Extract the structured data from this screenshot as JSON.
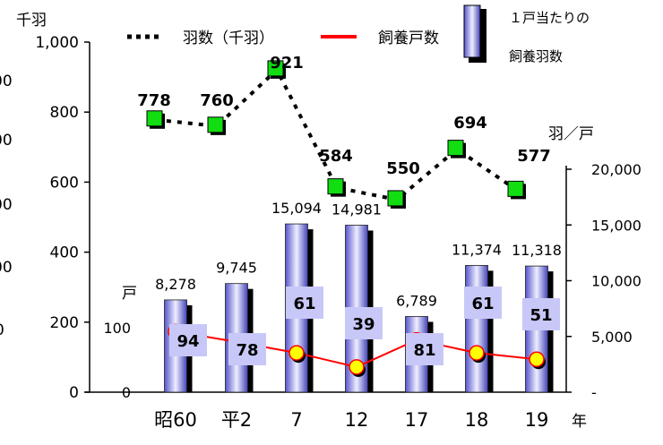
{
  "chart_data": {
    "type": "bar",
    "categories": [
      "昭60",
      "平2",
      "7",
      "12",
      "17",
      "18",
      "19"
    ],
    "x_suffix": "年",
    "left_axis": {
      "unit_top": "千羽",
      "unit_mid": "戸",
      "ticks": [
        "0",
        "200",
        "400",
        "600",
        "800",
        "1,000"
      ],
      "household_ticks": [
        "0",
        "100"
      ],
      "range": [
        0,
        1000
      ]
    },
    "right_axis": {
      "unit": "羽／戸",
      "ticks": [
        "-",
        "5,000",
        "10,000",
        "15,000",
        "20,000"
      ],
      "range": [
        0,
        20000
      ]
    },
    "clipped_left_labels": [
      "00",
      "00",
      "00",
      "00",
      "0"
    ],
    "legend": {
      "birds": "羽数（千羽）",
      "households": "飼養戸数",
      "per_household_line1": "１戸当たりの",
      "per_household_line2": "飼養羽数"
    },
    "series": [
      {
        "name": "羽数（千羽）",
        "axis": "left",
        "style": "dotted-line-square",
        "values": [
          778,
          760,
          921,
          584,
          550,
          694,
          577
        ],
        "labels": [
          "778",
          "760",
          "921",
          "584",
          "550",
          "694",
          "577"
        ]
      },
      {
        "name": "飼養戸数",
        "axis": "left",
        "style": "red-line-circle",
        "values": [
          94,
          78,
          61,
          39,
          81,
          61,
          51
        ],
        "labels": [
          "94",
          "78",
          "61",
          "39",
          "81",
          "61",
          "51"
        ]
      },
      {
        "name": "１戸当たりの飼養羽数",
        "axis": "right",
        "style": "bar",
        "values": [
          8278,
          9745,
          15094,
          14981,
          6789,
          11374,
          11318
        ],
        "labels": [
          "8,278",
          "9,745",
          "15,094",
          "14,981",
          "6,789",
          "11,374",
          "11,318"
        ]
      }
    ],
    "colors": {
      "bar_light": "#e6e6ff",
      "bar_mid": "#9999ee",
      "bar_dark": "#3333aa",
      "bar_shadow": "#000000",
      "square": "#11dd11",
      "circle": "#ffff00",
      "red_line": "#ff0000",
      "label_box": "#c8c8f8"
    }
  }
}
